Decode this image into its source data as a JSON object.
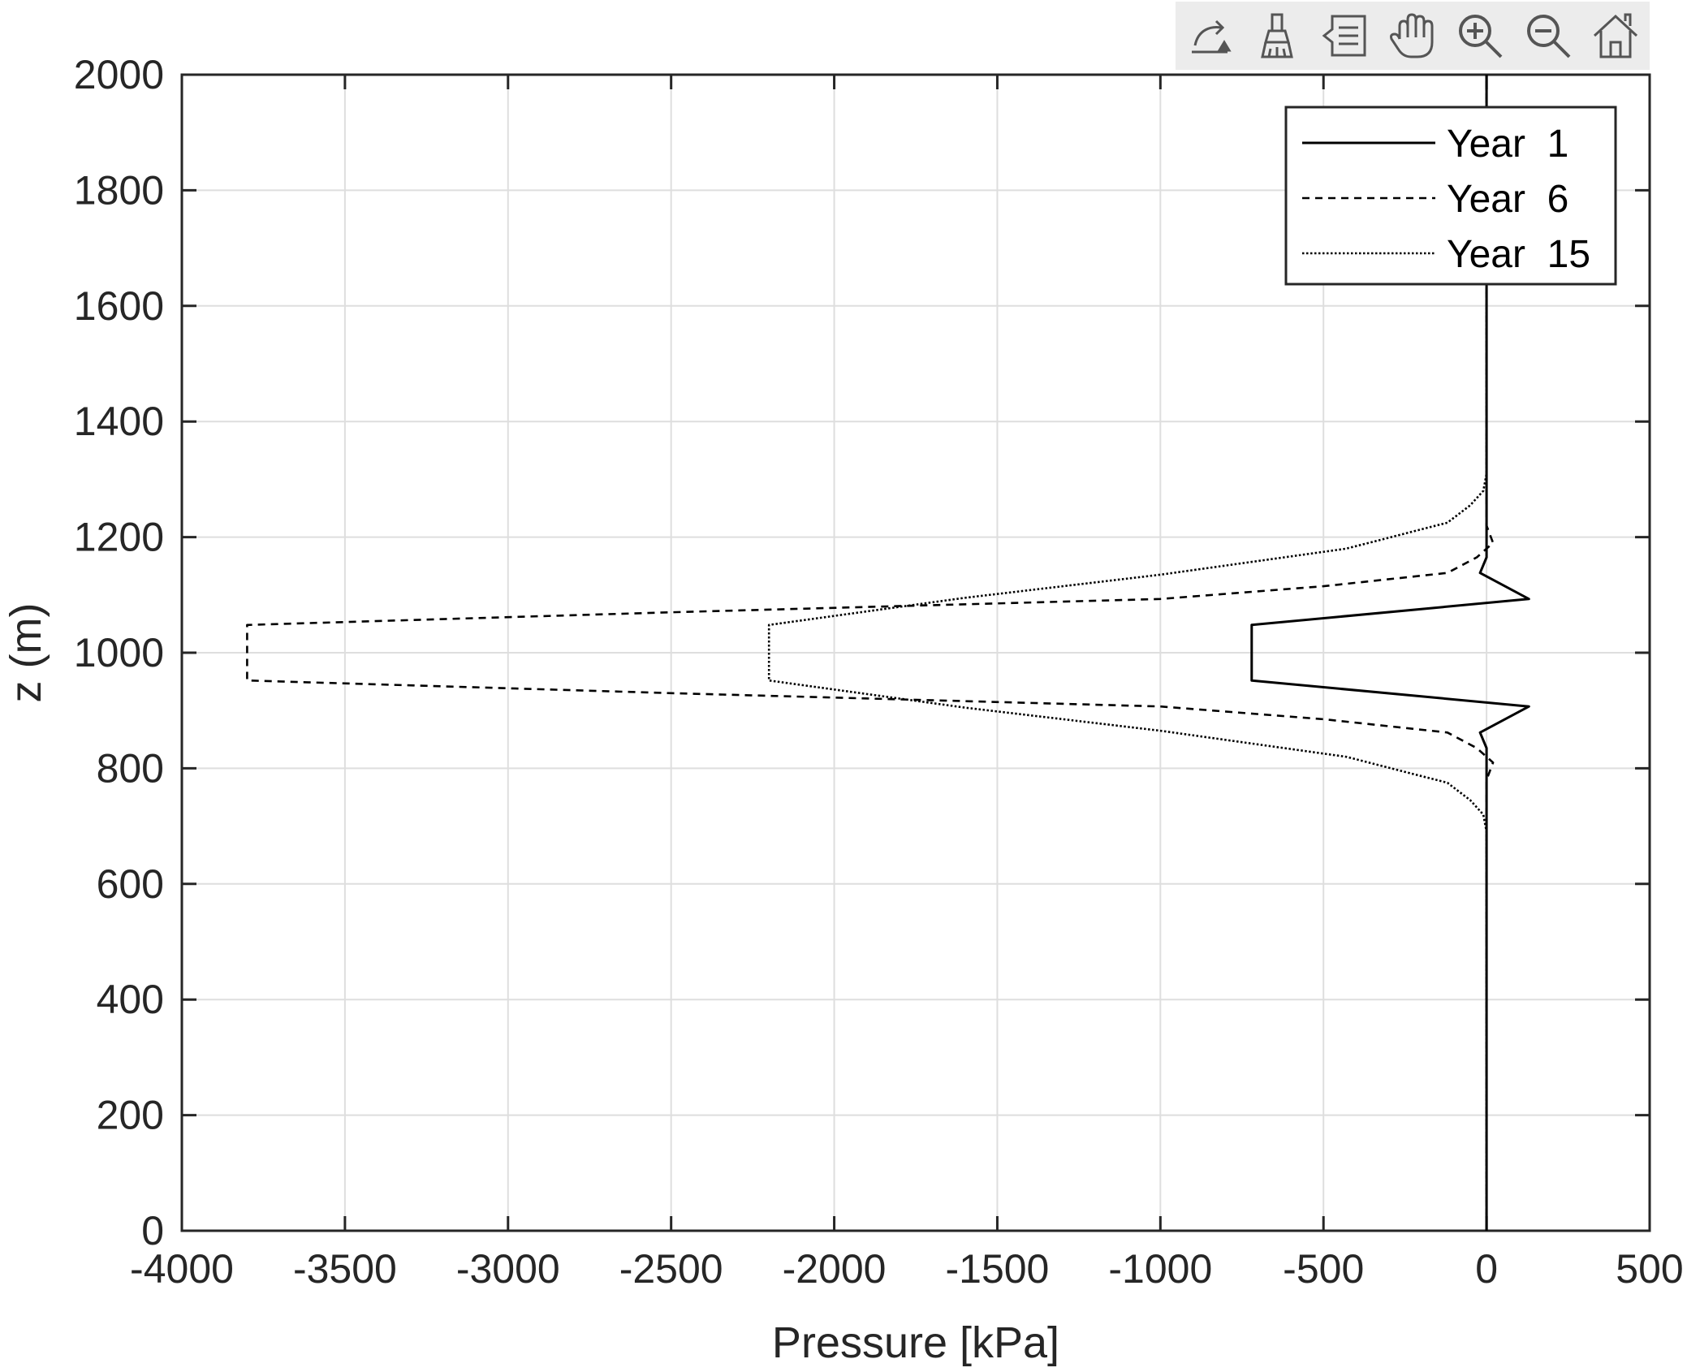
{
  "toolbar": {
    "icons": [
      "export-icon",
      "brush-icon",
      "data-tips-icon",
      "pan-hand-icon",
      "zoom-in-icon",
      "zoom-out-icon",
      "home-icon"
    ]
  },
  "chart_data": {
    "type": "line",
    "title": "",
    "xlabel": "Pressure [kPa]",
    "ylabel": "z (m)",
    "xlim": [
      -4000,
      500
    ],
    "ylim": [
      0,
      2000
    ],
    "xticks": [
      -4000,
      -3500,
      -3000,
      -2500,
      -2000,
      -1500,
      -1000,
      -500,
      0,
      500
    ],
    "yticks": [
      0,
      200,
      400,
      600,
      800,
      1000,
      1200,
      1400,
      1600,
      1800,
      2000
    ],
    "xtick_labels": [
      "-4000",
      "-3500",
      "-3000",
      "-2500",
      "-2000",
      "-1500",
      "-1000",
      "-500",
      "0",
      "500"
    ],
    "ytick_labels": [
      "0",
      "200",
      "400",
      "600",
      "800",
      "1000",
      "1200",
      "1400",
      "1600",
      "1800",
      "2000"
    ],
    "grid": true,
    "legend_position": "top-right",
    "series": [
      {
        "name": "Year  1",
        "style": "solid",
        "points": [
          [
            0,
            0
          ],
          [
            0,
            800
          ],
          [
            0,
            835
          ],
          [
            -20,
            862
          ],
          [
            130,
            907
          ],
          [
            -720,
            952
          ],
          [
            -720,
            1048
          ],
          [
            130,
            1093
          ],
          [
            -20,
            1138
          ],
          [
            0,
            1165
          ],
          [
            0,
            1200
          ],
          [
            0,
            2000
          ]
        ]
      },
      {
        "name": "Year  6",
        "style": "dashed",
        "points": [
          [
            0,
            0
          ],
          [
            0,
            780
          ],
          [
            20,
            810
          ],
          [
            -30,
            835
          ],
          [
            -120,
            862
          ],
          [
            -500,
            885
          ],
          [
            -1000,
            907
          ],
          [
            -2500,
            930
          ],
          [
            -3800,
            952
          ],
          [
            -3800,
            1048
          ],
          [
            -2500,
            1070
          ],
          [
            -1000,
            1093
          ],
          [
            -500,
            1115
          ],
          [
            -120,
            1138
          ],
          [
            -30,
            1165
          ],
          [
            20,
            1190
          ],
          [
            0,
            1220
          ],
          [
            0,
            2000
          ]
        ]
      },
      {
        "name": "Year  15",
        "style": "dotted",
        "points": [
          [
            0,
            0
          ],
          [
            0,
            690
          ],
          [
            -10,
            720
          ],
          [
            -50,
            745
          ],
          [
            -120,
            775
          ],
          [
            -430,
            820
          ],
          [
            -1000,
            865
          ],
          [
            -1600,
            905
          ],
          [
            -2200,
            952
          ],
          [
            -2200,
            1048
          ],
          [
            -1600,
            1095
          ],
          [
            -1000,
            1135
          ],
          [
            -430,
            1180
          ],
          [
            -120,
            1225
          ],
          [
            -50,
            1255
          ],
          [
            -10,
            1280
          ],
          [
            0,
            1310
          ],
          [
            0,
            2000
          ]
        ]
      }
    ]
  }
}
